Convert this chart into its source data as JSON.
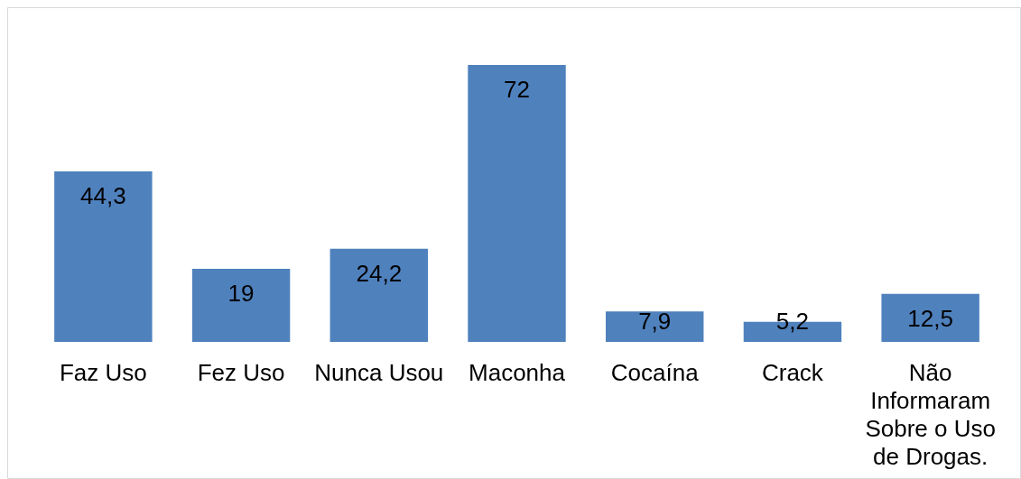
{
  "chart_data": {
    "type": "bar",
    "categories": [
      "Faz Uso",
      "Fez Uso",
      "Nunca Usou",
      "Maconha",
      "Cocaína",
      "Crack",
      "Não Informaram Sobre o Uso de Drogas."
    ],
    "values": [
      44.3,
      19,
      24.2,
      72,
      7.9,
      5.2,
      12.5
    ],
    "value_labels": [
      "44,3",
      "19",
      "24,2",
      "72",
      "7,9",
      "5,2",
      "12,5"
    ],
    "color": "#4f81bd"
  }
}
